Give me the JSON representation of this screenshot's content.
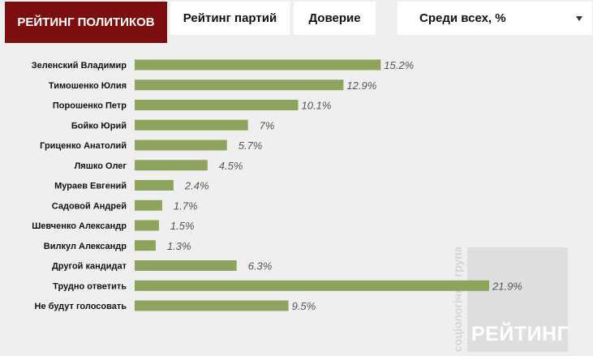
{
  "tabs": [
    {
      "label": "РЕЙТИНГ ПОЛИТИКОВ",
      "active": true
    },
    {
      "label": "Рейтинг партий",
      "active": false
    },
    {
      "label": "Доверие",
      "active": false
    }
  ],
  "filter": {
    "selected": "Среди всех, %"
  },
  "watermark": {
    "vertical": "соціологічна група",
    "brand": "РЕЙТИНГ"
  },
  "colors": {
    "bar": "#8da35e",
    "active_tab": "#7d0e10"
  },
  "chart_data": {
    "type": "bar",
    "orientation": "horizontal",
    "categories": [
      "Зеленский Владимир",
      "Тимошенко Юлия",
      "Порошенко Петр",
      "Бойко Юрий",
      "Гриценко Анатолий",
      "Ляшко Олег",
      "Мураев Евгений",
      "Садовой Андрей",
      "Шевченко Александр",
      "Вилкул Александр",
      "Другой кандидат",
      "Трудно ответить",
      "Не будут голосовать"
    ],
    "values": [
      15.2,
      12.9,
      10.1,
      7,
      5.7,
      4.5,
      2.4,
      1.7,
      1.5,
      1.3,
      6.3,
      21.9,
      9.5
    ],
    "value_labels": [
      "15.2%",
      "12.9%",
      "10.1%",
      "7%",
      "5.7%",
      "4.5%",
      "2.4%",
      "1.7%",
      "1.5%",
      "1.3%",
      "6.3%",
      "21.9%",
      "9.5%"
    ],
    "xlim": [
      0,
      21.9
    ],
    "grid": false
  }
}
